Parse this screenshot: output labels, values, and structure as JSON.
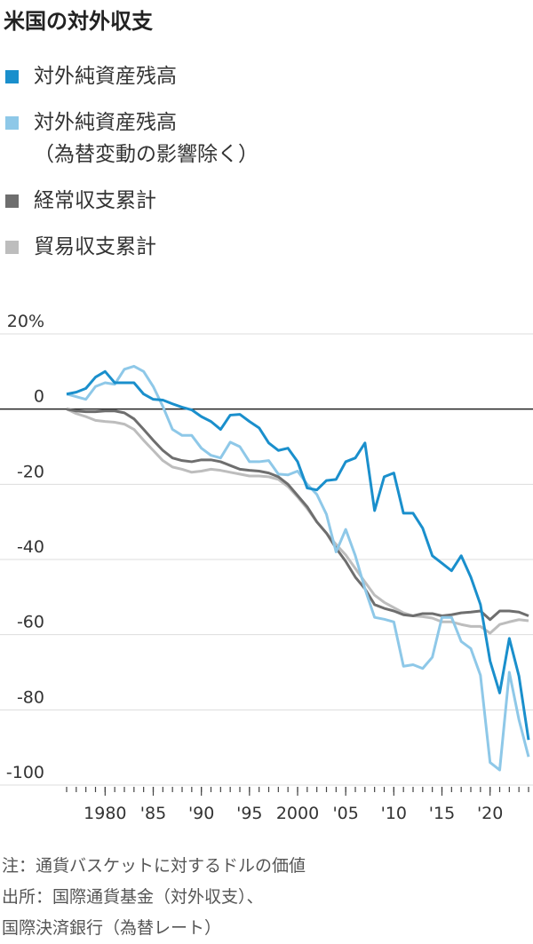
{
  "chart_data": {
    "type": "line",
    "title": "米国の対外収支",
    "x": [
      1976,
      1977,
      1978,
      1979,
      1980,
      1981,
      1982,
      1983,
      1984,
      1985,
      1986,
      1987,
      1988,
      1989,
      1990,
      1991,
      1992,
      1993,
      1994,
      1995,
      1996,
      1997,
      1998,
      1999,
      2000,
      2001,
      2002,
      2003,
      2004,
      2005,
      2006,
      2007,
      2008,
      2009,
      2010,
      2011,
      2012,
      2013,
      2014,
      2015,
      2016,
      2017,
      2018,
      2019,
      2020,
      2021,
      2022,
      2023,
      2024
    ],
    "series": [
      {
        "name": "対外純資産残高",
        "color": "#1a8fcc",
        "values": [
          4,
          4.5,
          5.5,
          8.5,
          10,
          7,
          7,
          7,
          4,
          2.6,
          2.4,
          1.4,
          0.5,
          -0.2,
          -2,
          -3.3,
          -5.4,
          -1.6,
          -1.4,
          -3.3,
          -5,
          -9,
          -11,
          -10.4,
          -14,
          -21,
          -21.5,
          -19,
          -18.7,
          -14,
          -13,
          -9,
          -27,
          -18,
          -17,
          -27.7,
          -27.7,
          -31.7,
          -39,
          -41,
          -43,
          -39,
          -44.7,
          -52,
          -67,
          -75.5,
          -61,
          -71,
          -88
        ]
      },
      {
        "name": "対外純資産残高\n（為替変動の影響除く）",
        "color": "#8ec8e8",
        "values": [
          4,
          3.3,
          2.6,
          6,
          7,
          6.6,
          10.6,
          11.4,
          10,
          6,
          0.7,
          -5.4,
          -7,
          -7,
          -10.4,
          -12.3,
          -13,
          -8.8,
          -10,
          -14,
          -14,
          -13.7,
          -17.3,
          -17.5,
          -16.5,
          -20,
          -22.7,
          -28,
          -38,
          -32,
          -39,
          -47.8,
          -55.4,
          -55.9,
          -56.6,
          -68.4,
          -68,
          -69,
          -66,
          -55.4,
          -55.4,
          -61.8,
          -63.7,
          -70.8,
          -94,
          -96,
          -70,
          -82.6,
          -92.5
        ]
      },
      {
        "name": "経常収支累計",
        "color": "#6e6e6e",
        "values": [
          0,
          -0.5,
          -0.7,
          -0.7,
          -0.5,
          -0.5,
          -1,
          -2.6,
          -5.4,
          -8.3,
          -11,
          -13,
          -13.7,
          -14,
          -13.5,
          -13.5,
          -14,
          -15,
          -16,
          -16.3,
          -16.5,
          -17,
          -18,
          -20,
          -23,
          -26,
          -30,
          -33,
          -37,
          -40.5,
          -44.7,
          -47.8,
          -52,
          -53,
          -53.7,
          -54.7,
          -55,
          -54.4,
          -54.4,
          -55,
          -54.7,
          -54.2,
          -54,
          -53.7,
          -56,
          -53.7,
          -53.7,
          -54,
          -55
        ]
      },
      {
        "name": "貿易収支累計",
        "color": "#bdbdbd",
        "values": [
          0,
          -1.2,
          -2,
          -3,
          -3.3,
          -3.5,
          -4,
          -5.4,
          -8.3,
          -11,
          -13.7,
          -15.4,
          -16,
          -16.8,
          -16.5,
          -16,
          -16.3,
          -16.8,
          -17.3,
          -17.8,
          -17.8,
          -18,
          -18.7,
          -20.6,
          -23.4,
          -26.5,
          -30,
          -33,
          -36,
          -38.8,
          -42.4,
          -46,
          -49.5,
          -51.4,
          -52.8,
          -54.2,
          -55,
          -55.2,
          -55.6,
          -56.6,
          -56.6,
          -57.3,
          -57.8,
          -57.8,
          -59.6,
          -57.3,
          -56.6,
          -56,
          -56.3
        ]
      }
    ],
    "xlim": [
      1976,
      2024
    ],
    "xticks": [
      {
        "value": 1980,
        "label": "1980"
      },
      {
        "value": 1985,
        "label": "'85"
      },
      {
        "value": 1990,
        "label": "'90"
      },
      {
        "value": 1995,
        "label": "'95"
      },
      {
        "value": 2000,
        "label": "2000"
      },
      {
        "value": 2005,
        "label": "'05"
      },
      {
        "value": 2010,
        "label": "'10"
      },
      {
        "value": 2015,
        "label": "'15"
      },
      {
        "value": 2020,
        "label": "'20"
      }
    ],
    "ylim": [
      -100,
      20
    ],
    "yticks": [
      {
        "value": 20,
        "label": "20%"
      },
      0,
      -20,
      -40,
      -60,
      -80,
      -100
    ],
    "grid": true,
    "notes": [
      "注：通貨バスケットに対するドルの価値",
      "出所：国際通貨基金（対外収支）、",
      "国際決済銀行（為替レート）"
    ]
  }
}
